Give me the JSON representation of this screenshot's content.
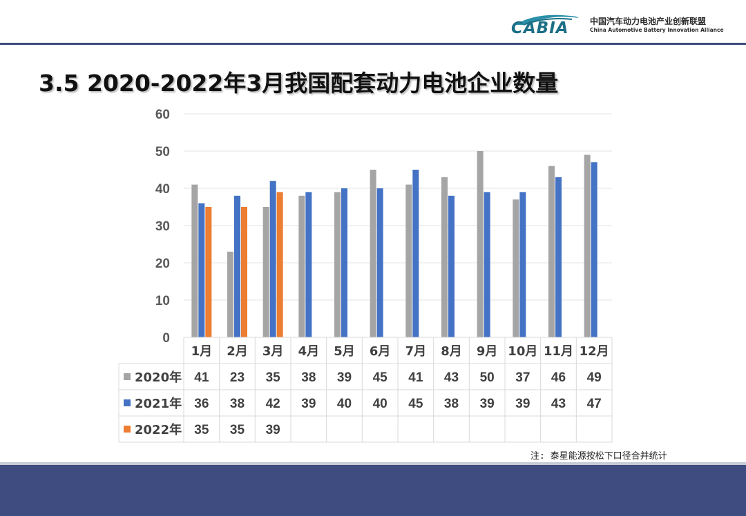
{
  "header": {
    "logo_text": "CABIA",
    "org_name_cn": "中国汽车动力电池产业创新联盟",
    "org_name_en": "China Automotive Battery Innovation Alliance"
  },
  "title": "3.5 2020-2022年3月我国配套动力电池企业数量",
  "note": "注: 泰星能源按松下口径合并统计",
  "chart_data": {
    "type": "bar",
    "title": "3.5 2020-2022年3月我国配套动力电池企业数量",
    "categories": [
      "1月",
      "2月",
      "3月",
      "4月",
      "5月",
      "6月",
      "7月",
      "8月",
      "9月",
      "10月",
      "11月",
      "12月"
    ],
    "series": [
      {
        "name": "2020年",
        "color": "#a5a5a5",
        "values": [
          41,
          23,
          35,
          38,
          39,
          45,
          41,
          43,
          50,
          37,
          46,
          49
        ]
      },
      {
        "name": "2021年",
        "color": "#4472c4",
        "values": [
          36,
          38,
          42,
          39,
          40,
          40,
          45,
          38,
          39,
          39,
          43,
          47
        ]
      },
      {
        "name": "2022年",
        "color": "#ed7d31",
        "values": [
          35,
          35,
          39,
          null,
          null,
          null,
          null,
          null,
          null,
          null,
          null,
          null
        ]
      }
    ],
    "yticks": [
      0,
      10,
      20,
      30,
      40,
      50,
      60
    ],
    "ylim": [
      0,
      60
    ],
    "grid": true,
    "legend": "data-table"
  }
}
